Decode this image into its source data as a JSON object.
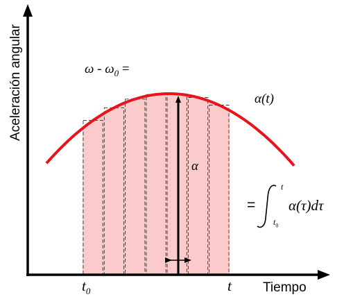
{
  "labels": {
    "y_axis": "Aceleración angular",
    "x_axis": "Tiempo",
    "omega_lhs": {
      "main": "ω - ω",
      "sub": "0",
      "tail": " ="
    },
    "curve": "α(t)",
    "alpha": "α",
    "t0": {
      "main": "t",
      "sub": "0"
    },
    "t": "t",
    "equals": "=",
    "integral_upper": "t",
    "integral_lower": {
      "main": "t",
      "sub": "0"
    },
    "integral_expr": "α(τ)dτ"
  },
  "colors": {
    "curve": "#e8141c",
    "fill": "#fbcaca",
    "axis": "#000000"
  },
  "diagram": {
    "strip_count": 7,
    "curve": "parabola"
  }
}
